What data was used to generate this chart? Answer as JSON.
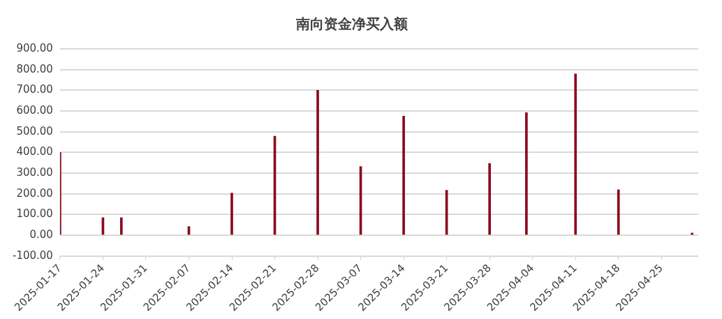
{
  "chart_data": {
    "type": "bar",
    "title": "南向资金净买入额",
    "x": [
      "2025-01-17",
      "2025-01-24",
      "2025-01-27",
      "2025-02-07",
      "2025-02-14",
      "2025-02-21",
      "2025-02-28",
      "2025-03-07",
      "2025-03-14",
      "2025-03-21",
      "2025-03-28",
      "2025-04-03",
      "2025-04-11",
      "2025-04-18",
      "2025-04-30"
    ],
    "values": [
      400,
      85,
      85,
      42,
      204,
      478,
      700,
      332,
      575,
      217,
      347,
      592,
      779,
      220,
      11
    ],
    "color": "#8b0a1e",
    "xlim": [
      "2025-01-17",
      "2025-05-01"
    ],
    "xticks": [
      "2025-01-17",
      "2025-01-24",
      "2025-01-31",
      "2025-02-07",
      "2025-02-14",
      "2025-02-21",
      "2025-02-28",
      "2025-03-07",
      "2025-03-14",
      "2025-03-21",
      "2025-03-28",
      "2025-04-04",
      "2025-04-11",
      "2025-04-18",
      "2025-04-25"
    ],
    "ylim": [
      -100,
      900
    ],
    "yticks": [
      {
        "value": -100,
        "label": "-100.00"
      },
      {
        "value": 0,
        "label": "0.00"
      },
      {
        "value": 100,
        "label": "100.00"
      },
      {
        "value": 200,
        "label": "200.00"
      },
      {
        "value": 300,
        "label": "300.00"
      },
      {
        "value": 400,
        "label": "400.00"
      },
      {
        "value": 500,
        "label": "500.00"
      },
      {
        "value": 600,
        "label": "600.00"
      },
      {
        "value": 700,
        "label": "700.00"
      },
      {
        "value": 800,
        "label": "800.00"
      },
      {
        "value": 900,
        "label": "900.00"
      }
    ],
    "grid": "y",
    "legend": false
  }
}
